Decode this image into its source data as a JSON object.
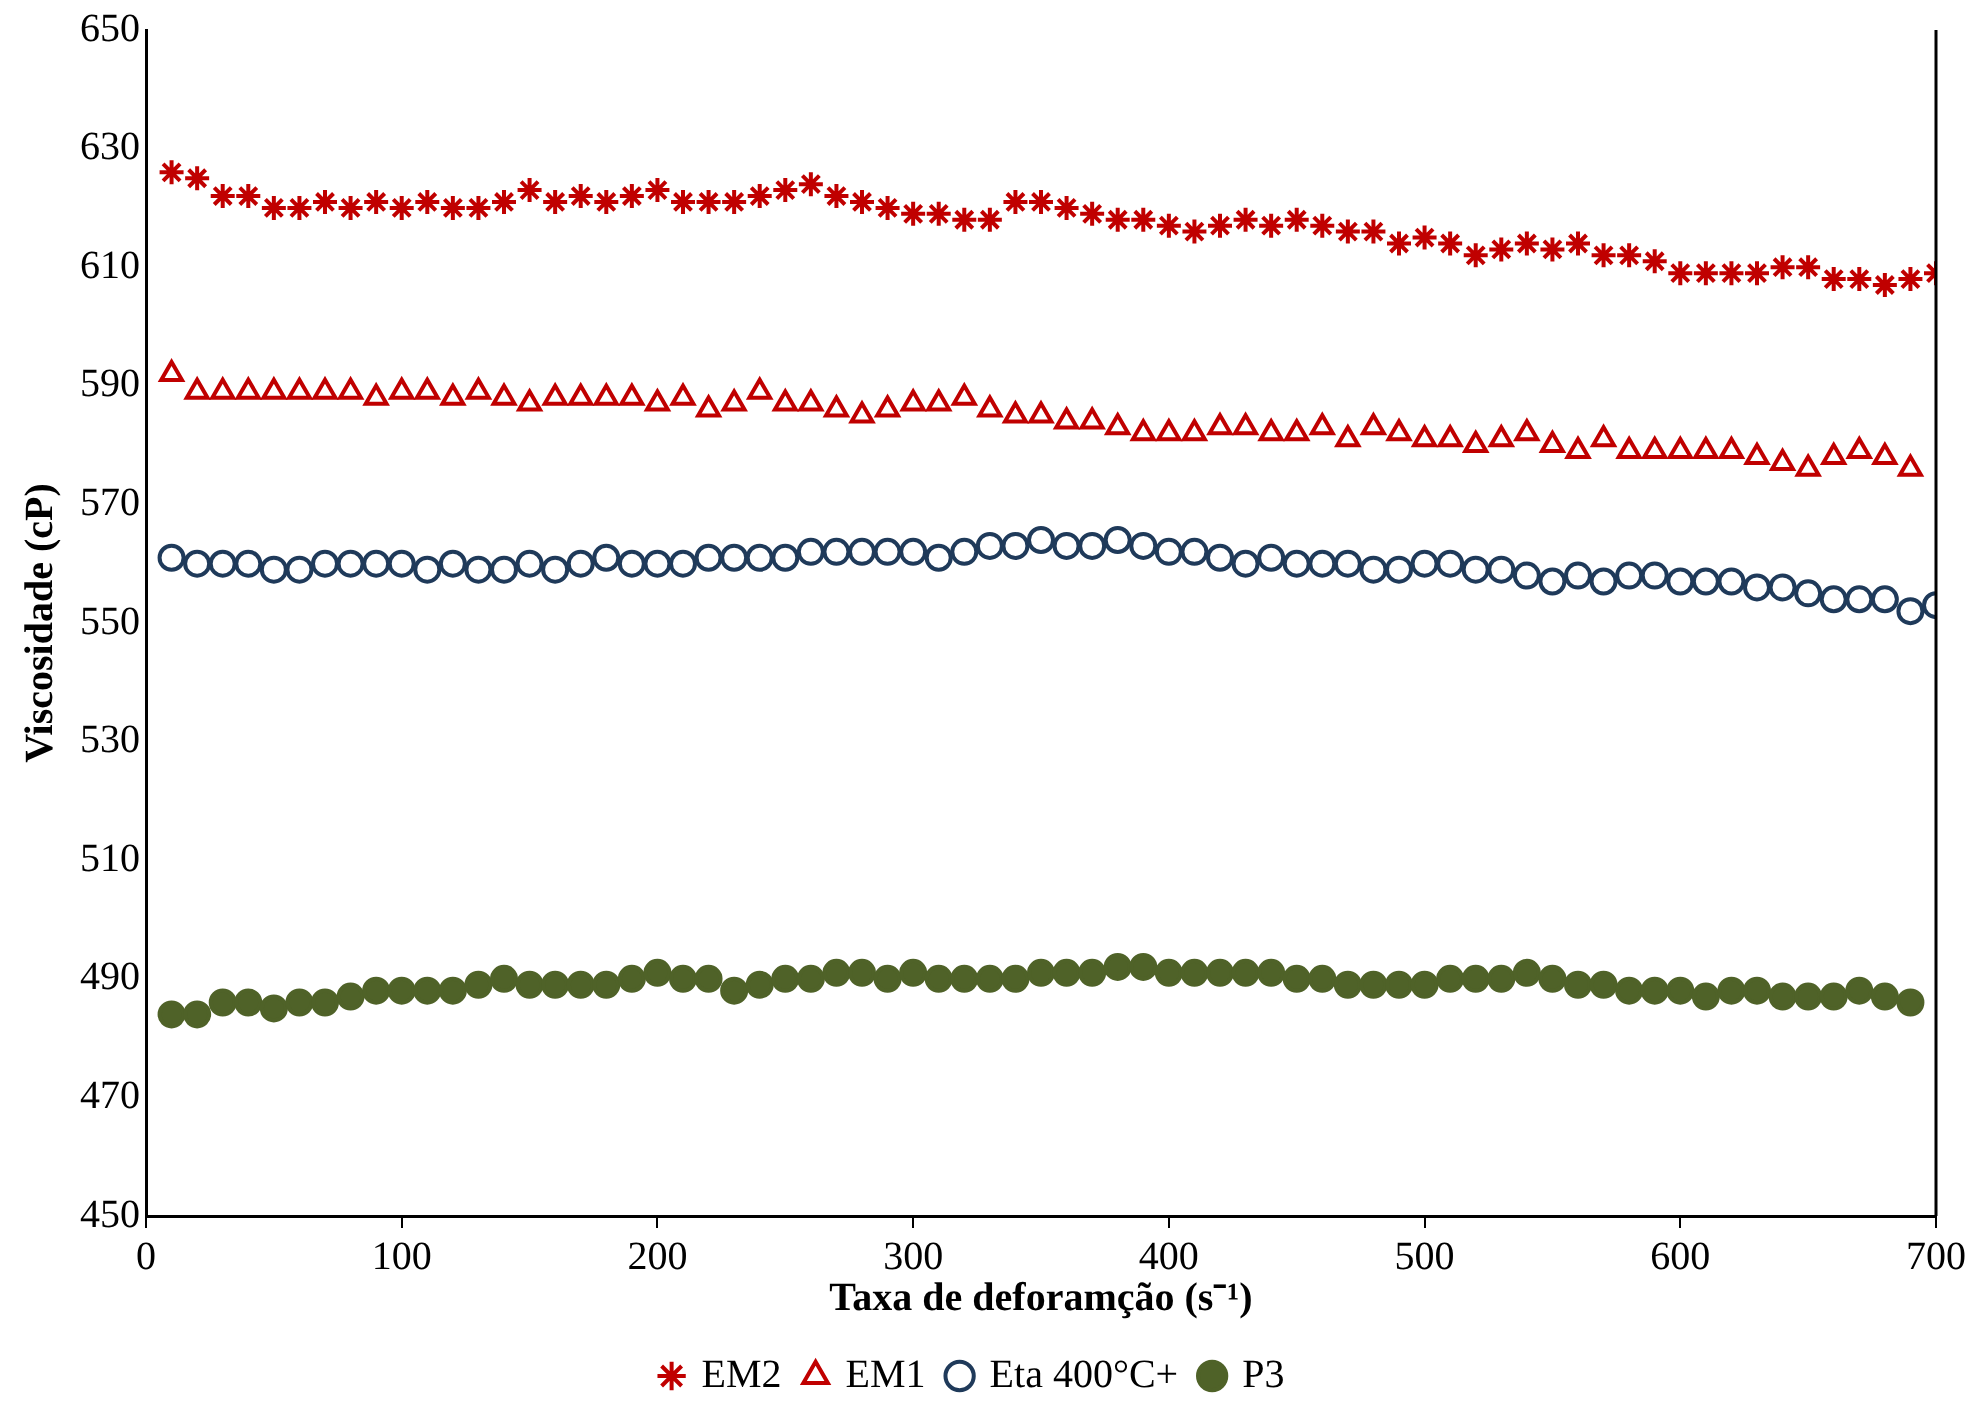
{
  "chart_data": {
    "type": "scatter",
    "xlabel": "Taxa de deforamção (s⁻¹)",
    "ylabel": "Viscosidade (cP)",
    "xlim": [
      0,
      700
    ],
    "xticks": [
      0,
      100,
      200,
      300,
      400,
      500,
      600,
      700
    ],
    "ylim": [
      450,
      650
    ],
    "yticks": [
      450,
      470,
      490,
      510,
      530,
      550,
      570,
      590,
      610,
      630,
      650
    ],
    "grid": false,
    "legend": "bottom",
    "series": [
      {
        "name": "EM2",
        "color": "#c00000",
        "marker": "cross",
        "x": [
          10,
          20,
          30,
          40,
          50,
          60,
          70,
          80,
          90,
          100,
          110,
          120,
          130,
          140,
          150,
          160,
          170,
          180,
          190,
          200,
          210,
          220,
          230,
          240,
          250,
          260,
          270,
          280,
          290,
          300,
          310,
          320,
          330,
          340,
          350,
          360,
          370,
          380,
          390,
          400,
          410,
          420,
          430,
          440,
          450,
          460,
          470,
          480,
          490,
          500,
          510,
          520,
          530,
          540,
          550,
          560,
          570,
          580,
          590,
          600,
          610,
          620,
          630,
          640,
          650,
          660,
          670,
          680,
          690,
          700
        ],
        "values": [
          626,
          625,
          622,
          622,
          620,
          620,
          621,
          620,
          621,
          620,
          621,
          620,
          620,
          621,
          623,
          621,
          622,
          621,
          622,
          623,
          621,
          621,
          621,
          622,
          623,
          624,
          622,
          621,
          620,
          619,
          619,
          618,
          618,
          621,
          621,
          620,
          619,
          618,
          618,
          617,
          616,
          617,
          618,
          617,
          618,
          617,
          616,
          616,
          614,
          615,
          614,
          612,
          613,
          614,
          613,
          614,
          612,
          612,
          611,
          609,
          609,
          609,
          609,
          610,
          610,
          608,
          608,
          607,
          608,
          609
        ]
      },
      {
        "name": "EM1",
        "color": "#c00000",
        "marker": "triangle",
        "x": [
          10,
          20,
          30,
          40,
          50,
          60,
          70,
          80,
          90,
          100,
          110,
          120,
          130,
          140,
          150,
          160,
          170,
          180,
          190,
          200,
          210,
          220,
          230,
          240,
          250,
          260,
          270,
          280,
          290,
          300,
          310,
          320,
          330,
          340,
          350,
          360,
          370,
          380,
          390,
          400,
          410,
          420,
          430,
          440,
          450,
          460,
          470,
          480,
          490,
          500,
          510,
          520,
          530,
          540,
          550,
          560,
          570,
          580,
          590,
          600,
          610,
          620,
          630,
          640,
          650,
          660,
          670,
          680,
          690
        ],
        "values": [
          592,
          589,
          589,
          589,
          589,
          589,
          589,
          589,
          588,
          589,
          589,
          588,
          589,
          588,
          587,
          588,
          588,
          588,
          588,
          587,
          588,
          586,
          587,
          589,
          587,
          587,
          586,
          585,
          586,
          587,
          587,
          588,
          586,
          585,
          585,
          584,
          584,
          583,
          582,
          582,
          582,
          583,
          583,
          582,
          582,
          583,
          581,
          583,
          582,
          581,
          581,
          580,
          581,
          582,
          580,
          579,
          581,
          579,
          579,
          579,
          579,
          579,
          578,
          577,
          576,
          578,
          579,
          578,
          576
        ]
      },
      {
        "name": "Eta 400°C+",
        "color": "#1f3a5a",
        "marker": "circle",
        "x": [
          10,
          20,
          30,
          40,
          50,
          60,
          70,
          80,
          90,
          100,
          110,
          120,
          130,
          140,
          150,
          160,
          170,
          180,
          190,
          200,
          210,
          220,
          230,
          240,
          250,
          260,
          270,
          280,
          290,
          300,
          310,
          320,
          330,
          340,
          350,
          360,
          370,
          380,
          390,
          400,
          410,
          420,
          430,
          440,
          450,
          460,
          470,
          480,
          490,
          500,
          510,
          520,
          530,
          540,
          550,
          560,
          570,
          580,
          590,
          600,
          610,
          620,
          630,
          640,
          650,
          660,
          670,
          680,
          690,
          700
        ],
        "values": [
          561,
          560,
          560,
          560,
          559,
          559,
          560,
          560,
          560,
          560,
          559,
          560,
          559,
          559,
          560,
          559,
          560,
          561,
          560,
          560,
          560,
          561,
          561,
          561,
          561,
          562,
          562,
          562,
          562,
          562,
          561,
          562,
          563,
          563,
          564,
          563,
          563,
          564,
          563,
          562,
          562,
          561,
          560,
          561,
          560,
          560,
          560,
          559,
          559,
          560,
          560,
          559,
          559,
          558,
          557,
          558,
          557,
          558,
          558,
          557,
          557,
          557,
          556,
          556,
          555,
          554,
          554,
          554,
          552,
          553
        ]
      },
      {
        "name": "P3",
        "color": "#4f6228",
        "marker": "circle",
        "x": [
          10,
          20,
          30,
          40,
          50,
          60,
          70,
          80,
          90,
          100,
          110,
          120,
          130,
          140,
          150,
          160,
          170,
          180,
          190,
          200,
          210,
          220,
          230,
          240,
          250,
          260,
          270,
          280,
          290,
          300,
          310,
          320,
          330,
          340,
          350,
          360,
          370,
          380,
          390,
          400,
          410,
          420,
          430,
          440,
          450,
          460,
          470,
          480,
          490,
          500,
          510,
          520,
          530,
          540,
          550,
          560,
          570,
          580,
          590,
          600,
          610,
          620,
          630,
          640,
          650,
          660,
          670,
          680,
          690
        ],
        "values": [
          484,
          484,
          486,
          486,
          485,
          486,
          486,
          487,
          488,
          488,
          488,
          488,
          489,
          490,
          489,
          489,
          489,
          489,
          490,
          491,
          490,
          490,
          488,
          489,
          490,
          490,
          491,
          491,
          490,
          491,
          490,
          490,
          490,
          490,
          491,
          491,
          491,
          492,
          492,
          491,
          491,
          491,
          491,
          491,
          490,
          490,
          489,
          489,
          489,
          489,
          490,
          490,
          490,
          491,
          490,
          489,
          489,
          488,
          488,
          488,
          487,
          488,
          488,
          487,
          487,
          487,
          488,
          487,
          486
        ]
      }
    ]
  }
}
